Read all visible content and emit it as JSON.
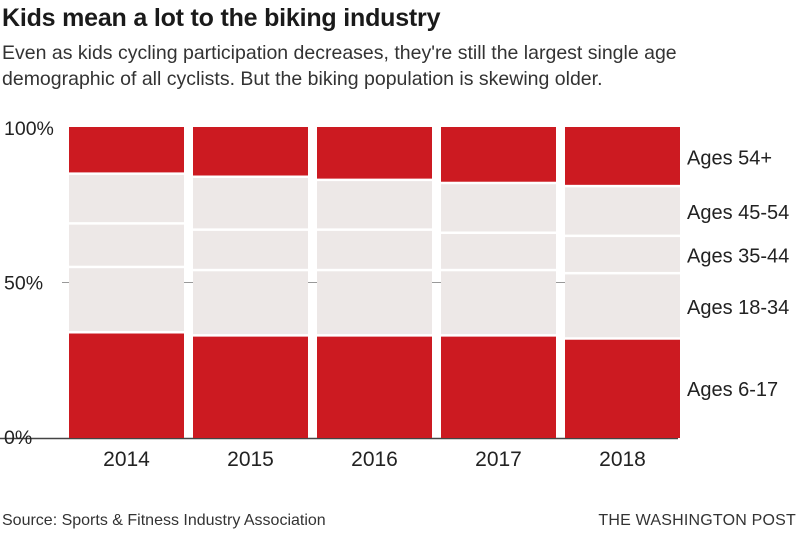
{
  "header": {
    "title": "Kids mean a lot to the biking industry",
    "subtitle": "Even as kids cycling participation decreases, they're still the largest single age demographic of all cyclists. But the biking population is skewing older."
  },
  "footer": {
    "source": "Source: Sports & Fitness Industry Association",
    "credit": "THE WASHINGTON POST"
  },
  "colors": {
    "highlight": "#cc1a21",
    "muted": "#ede8e7",
    "axis": "#444444",
    "gap": "#ffffff"
  },
  "chart_data": {
    "type": "bar",
    "stacked": true,
    "categories": [
      "2014",
      "2015",
      "2016",
      "2017",
      "2018"
    ],
    "yticks": [
      "0%",
      "50%",
      "100%"
    ],
    "ylim": [
      0,
      100
    ],
    "series": [
      {
        "name": "Ages 6-17",
        "values": [
          34,
          33,
          33,
          33,
          32
        ],
        "color": "#cc1a21"
      },
      {
        "name": "Ages 18-34",
        "values": [
          21,
          21,
          21,
          21,
          21
        ],
        "color": "#ede8e7"
      },
      {
        "name": "Ages 35-44",
        "values": [
          14,
          13,
          13,
          12,
          12
        ],
        "color": "#ede8e7"
      },
      {
        "name": "Ages 45-54",
        "values": [
          16,
          17,
          16,
          16,
          16
        ],
        "color": "#ede8e7"
      },
      {
        "name": "Ages 54+",
        "values": [
          15,
          16,
          17,
          18,
          19
        ],
        "color": "#cc1a21"
      }
    ]
  }
}
